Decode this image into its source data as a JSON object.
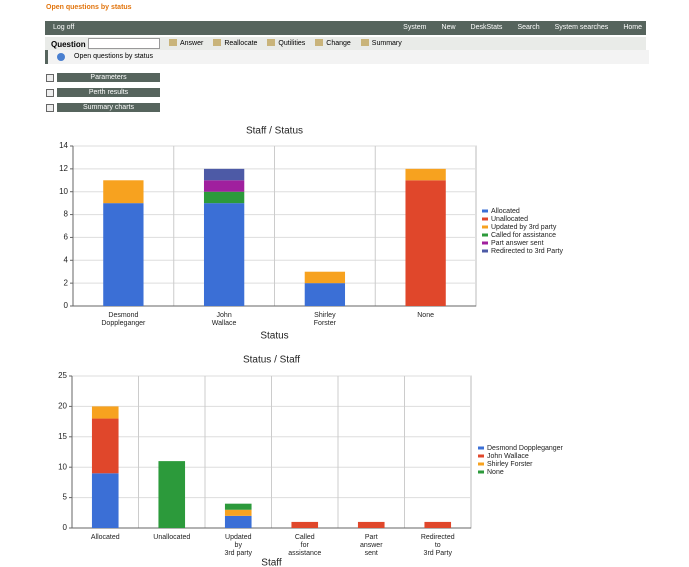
{
  "header": {
    "title": "Open questions by status"
  },
  "nav": {
    "left": "Log off",
    "items": [
      "System",
      "New",
      "DeskStats",
      "Search",
      "System searches",
      "Home"
    ]
  },
  "toolbar": {
    "label": "Question",
    "buttons": [
      "Answer",
      "Reallocate",
      "Qutilities",
      "Change",
      "Summary"
    ]
  },
  "info": "Open questions by status",
  "sections": [
    "Parameters",
    "Perth results",
    "Summary charts"
  ],
  "chart_data": [
    {
      "type": "bar",
      "stacked": true,
      "title": "Staff / Status",
      "x_label": "Status",
      "categories": [
        "Desmond\nDoppleganger",
        "John\nWallace",
        "Shirley\nForster",
        "None"
      ],
      "series": [
        {
          "name": "Allocated",
          "color": "#3b6fd6",
          "values": [
            9,
            9,
            2,
            0
          ]
        },
        {
          "name": "Unallocated",
          "color": "#e0472b",
          "values": [
            0,
            0,
            0,
            11
          ]
        },
        {
          "name": "Updated by 3rd party",
          "color": "#f7a21f",
          "values": [
            2,
            0,
            1,
            1
          ]
        },
        {
          "name": "Called for assistance",
          "color": "#2c9a3b",
          "values": [
            0,
            1,
            0,
            0
          ]
        },
        {
          "name": "Part answer sent",
          "color": "#a0209e",
          "values": [
            0,
            1,
            0,
            0
          ]
        },
        {
          "name": "Redirected to 3rd Party",
          "color": "#4d5aa6",
          "values": [
            0,
            1,
            0,
            0
          ]
        }
      ],
      "ylim": [
        0,
        14
      ],
      "yticks": [
        0,
        2,
        4,
        6,
        8,
        10,
        12,
        14
      ],
      "grid": true,
      "legend": "right"
    },
    {
      "type": "bar",
      "stacked": true,
      "title": "Status / Staff",
      "x_label": "Staff",
      "categories": [
        "Allocated",
        "Unallocated",
        "Updated\nby\n3rd party",
        "Called\nfor\nassistance",
        "Part\nanswer\nsent",
        "Redirected\nto\n3rd Party"
      ],
      "series": [
        {
          "name": "Desmond Doppleganger",
          "color": "#3b6fd6",
          "values": [
            9,
            0,
            2,
            0,
            0,
            0
          ]
        },
        {
          "name": "John Wallace",
          "color": "#e0472b",
          "values": [
            9,
            0,
            0,
            1,
            1,
            1
          ]
        },
        {
          "name": "Shirley Forster",
          "color": "#f7a21f",
          "values": [
            2,
            0,
            1,
            0,
            0,
            0
          ]
        },
        {
          "name": "None",
          "color": "#2c9a3b",
          "values": [
            0,
            11,
            1,
            0,
            0,
            0
          ]
        }
      ],
      "ylim": [
        0,
        25
      ],
      "yticks": [
        0,
        5,
        10,
        15,
        20,
        25
      ],
      "grid": true,
      "legend": "right"
    }
  ]
}
